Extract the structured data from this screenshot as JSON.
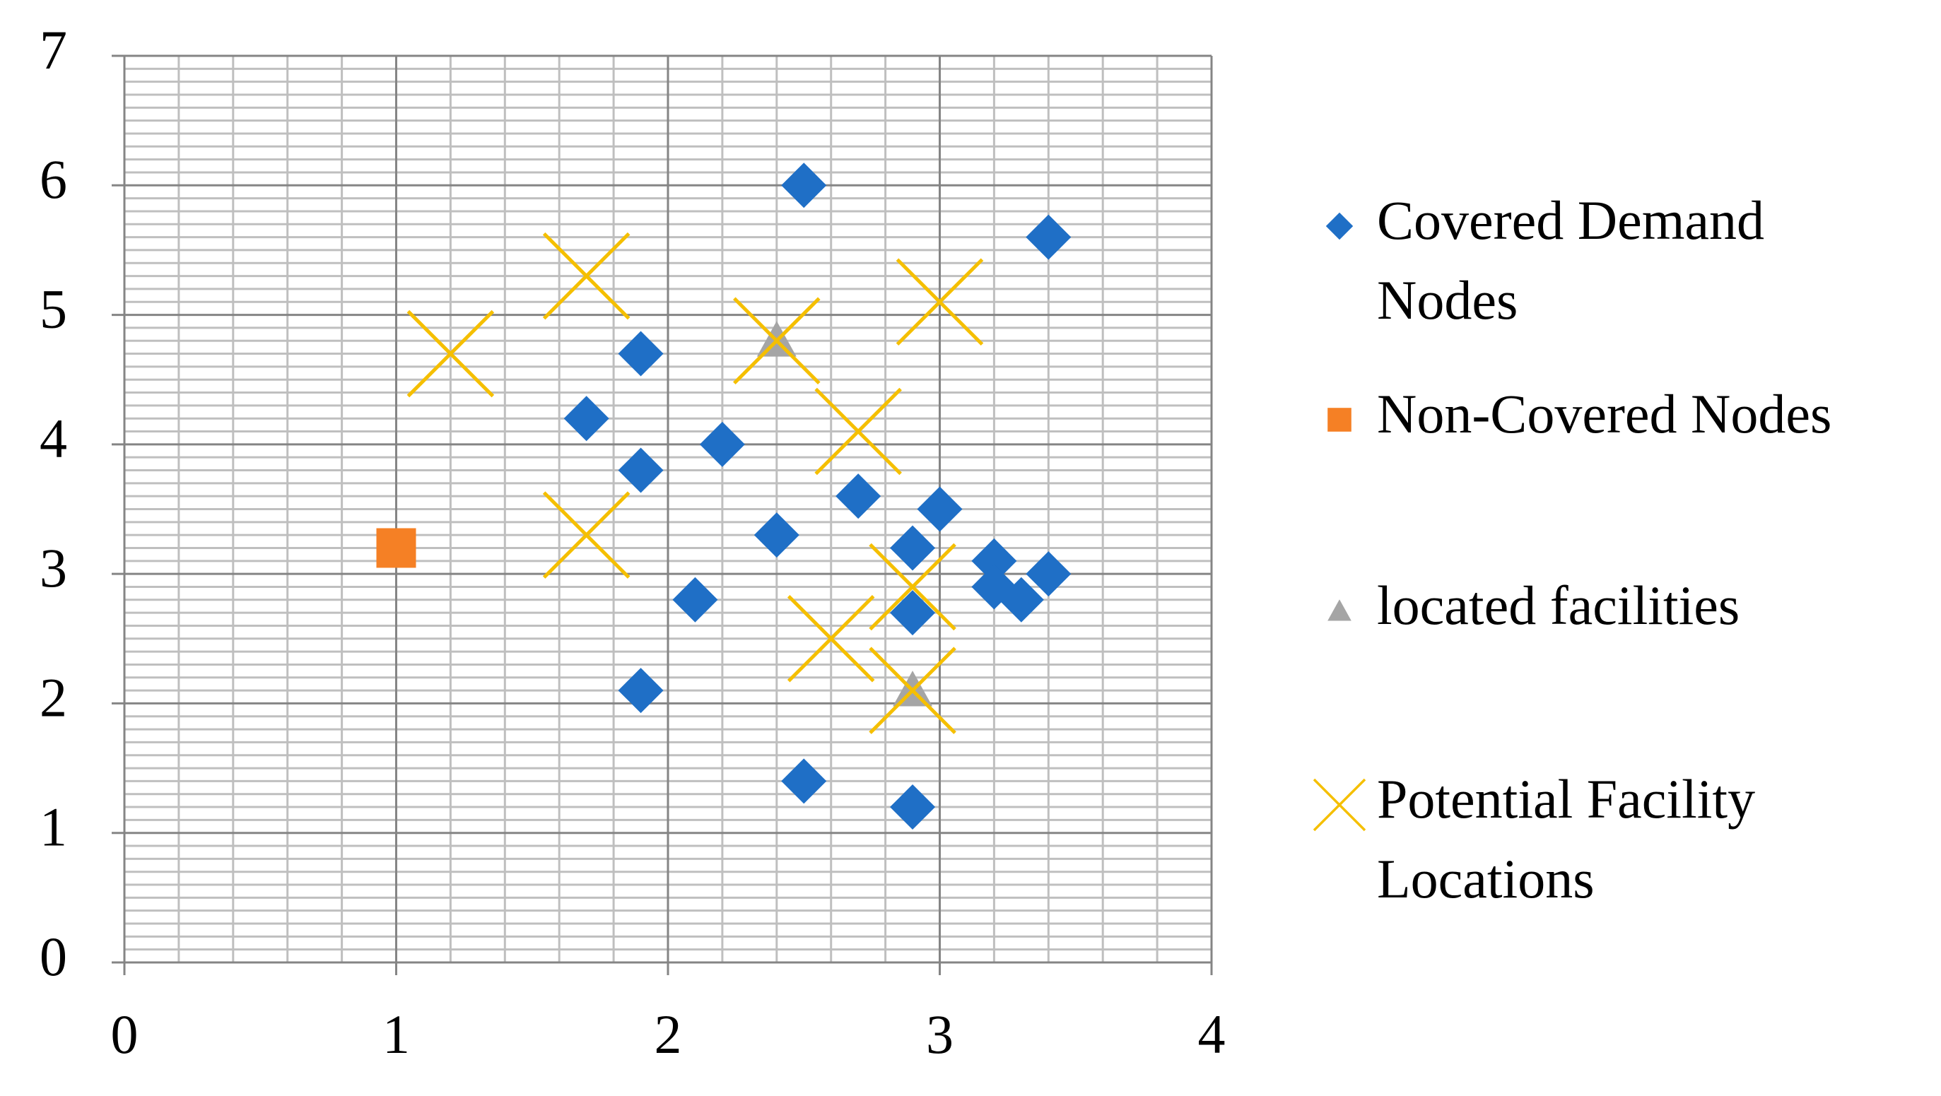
{
  "chart_data": {
    "type": "scatter",
    "xlim": [
      0,
      4
    ],
    "ylim": [
      0,
      7
    ],
    "xticks": [
      0,
      1,
      2,
      3,
      4
    ],
    "yticks": [
      0,
      1,
      2,
      3,
      4,
      5,
      6,
      7
    ],
    "grid": true,
    "xminor": 0.2,
    "yminor": 0.1,
    "legend": "right",
    "series": [
      {
        "name": "Covered Demand Nodes",
        "color": "#1f6fc6",
        "marker": "diamond",
        "x": [
          2.5,
          3.4,
          1.9,
          1.7,
          2.2,
          1.9,
          2.7,
          3.0,
          2.4,
          2.9,
          3.2,
          3.2,
          3.4,
          3.3,
          2.1,
          2.9,
          1.9,
          2.5,
          2.9
        ],
        "values": [
          6.0,
          5.6,
          4.7,
          4.2,
          4.0,
          3.8,
          3.6,
          3.5,
          3.3,
          3.2,
          3.1,
          2.9,
          3.0,
          2.8,
          2.8,
          2.7,
          2.1,
          1.4,
          1.2
        ]
      },
      {
        "name": "Non-Covered Nodes",
        "color": "#f58025",
        "marker": "square",
        "x": [
          1.0
        ],
        "values": [
          3.2
        ]
      },
      {
        "name": "located facilities",
        "color": "#a5a5a5",
        "marker": "triangle",
        "x": [
          2.4,
          2.9
        ],
        "values": [
          4.8,
          2.1
        ]
      },
      {
        "name": "Potential Facility Locations",
        "color": "#f5bf00",
        "marker": "x",
        "x": [
          1.2,
          1.7,
          2.4,
          3.0,
          2.7,
          1.7,
          2.9,
          2.6,
          2.9
        ],
        "values": [
          4.7,
          5.3,
          4.8,
          5.1,
          4.1,
          3.3,
          2.9,
          2.5,
          2.1
        ]
      }
    ]
  }
}
